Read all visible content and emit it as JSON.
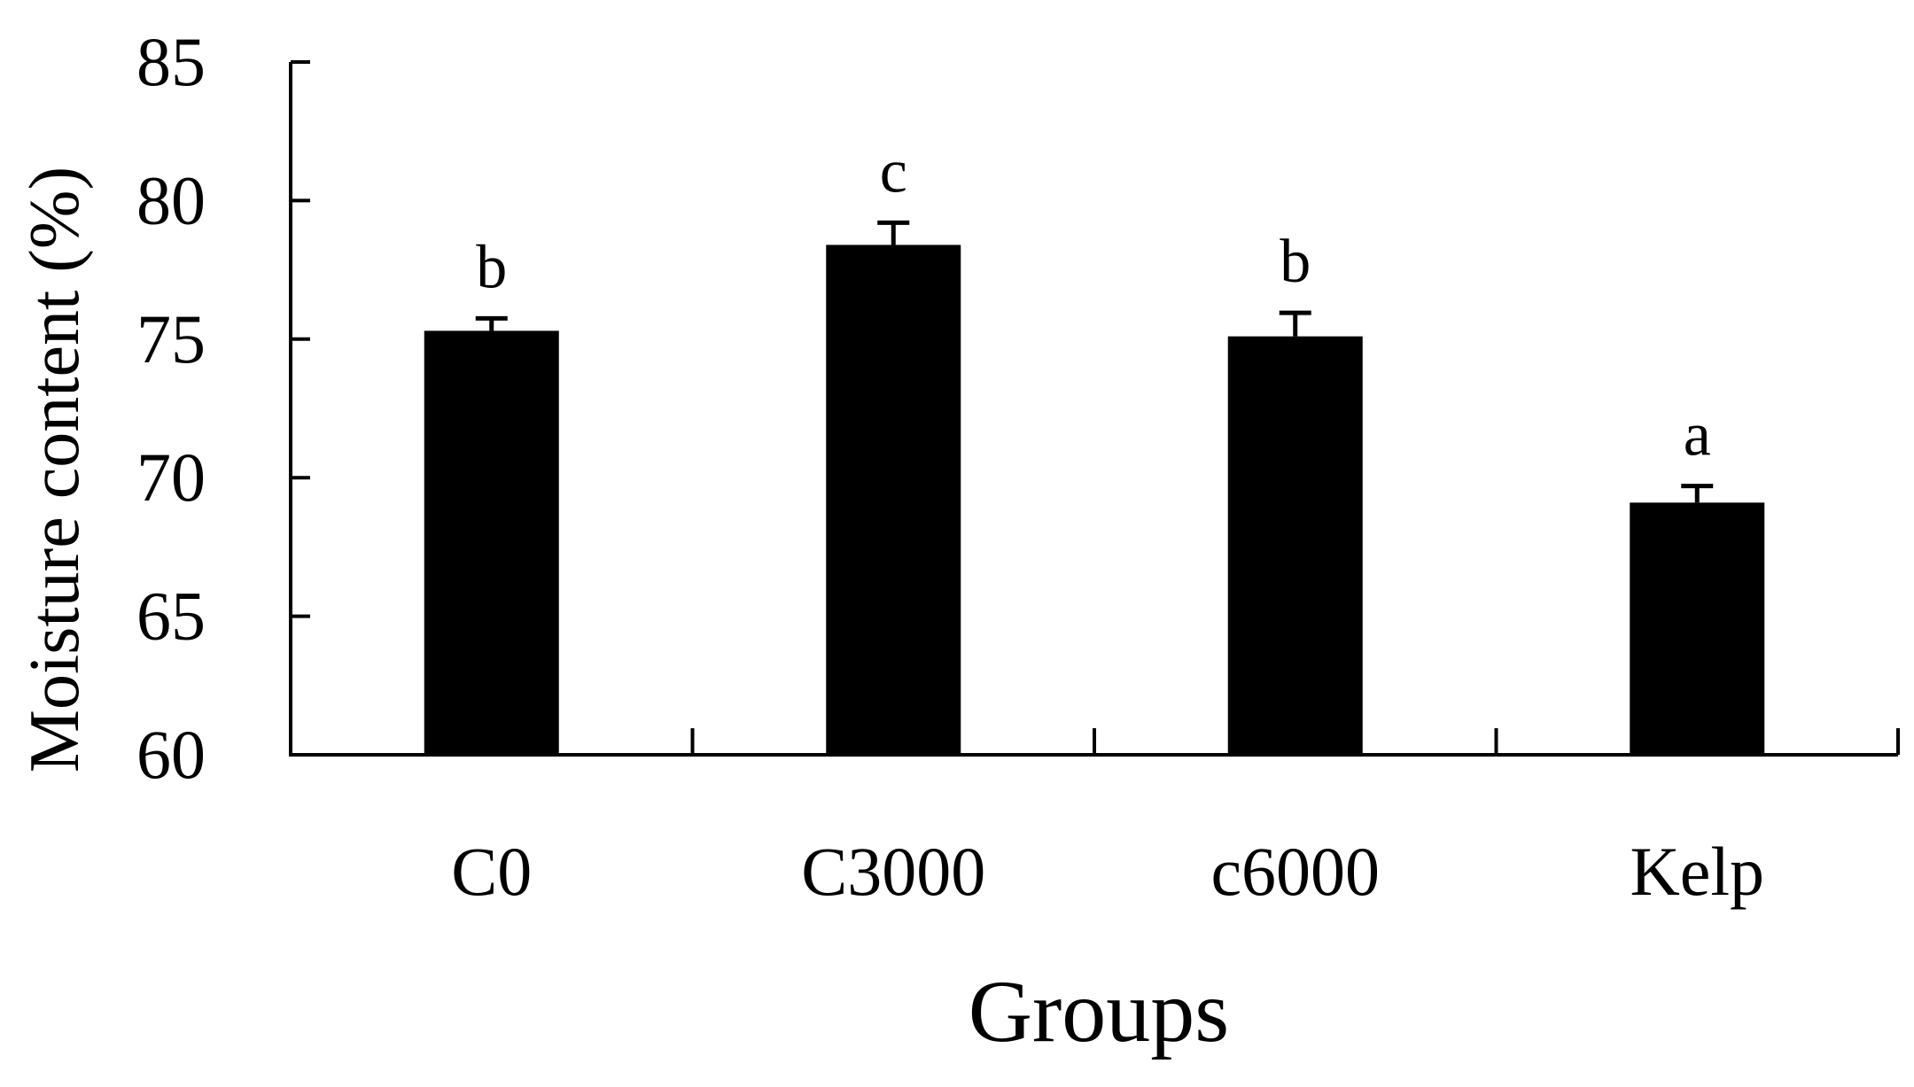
{
  "chart_data": {
    "type": "bar",
    "title": "",
    "xlabel": "Groups",
    "ylabel": "Moisture content (%)",
    "categories": [
      "C0",
      "C3000",
      "c6000",
      "Kelp"
    ],
    "values": [
      75.3,
      78.4,
      75.1,
      69.1
    ],
    "errors": [
      0.45,
      0.8,
      0.85,
      0.6
    ],
    "significance_labels": [
      "b",
      "c",
      "b",
      "a"
    ],
    "ylim": [
      60,
      85
    ],
    "yticks": [
      60,
      65,
      70,
      75,
      80,
      85
    ],
    "ytick_labels": [
      "60",
      "65",
      "70",
      "75",
      "80",
      "85"
    ],
    "grid": false,
    "legend": "none",
    "colors": {
      "bar": "#000000",
      "axis": "#000000",
      "background": "#ffffff"
    }
  }
}
